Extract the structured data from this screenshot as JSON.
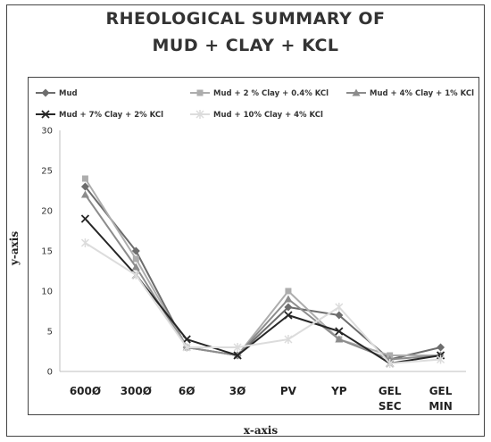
{
  "chart_data": {
    "type": "line",
    "title_line1": "RHEOLOGICAL SUMMARY OF",
    "title_line2": "MUD + CLAY + KCL",
    "xlabel": "x-axis",
    "ylabel": "y-axis",
    "ylim": [
      0,
      30
    ],
    "yticks": [
      0,
      5,
      10,
      15,
      20,
      25,
      30
    ],
    "grid": false,
    "legend_position": "top",
    "categories": [
      [
        "600Ø"
      ],
      [
        "300Ø"
      ],
      [
        "6Ø"
      ],
      [
        "3Ø"
      ],
      [
        "PV"
      ],
      [
        "YP"
      ],
      [
        "GEL",
        "SEC"
      ],
      [
        "GEL",
        "MIN"
      ]
    ],
    "series": [
      {
        "name": "Mud",
        "color": "#6d6d6d",
        "marker": "diamond",
        "values": [
          23,
          15,
          3,
          2,
          8,
          7,
          1.5,
          3
        ]
      },
      {
        "name": "Mud + 2 % Clay + 0.4% KCl",
        "color": "#adadad",
        "marker": "square",
        "values": [
          24,
          14,
          3,
          2,
          10,
          4,
          2,
          2
        ]
      },
      {
        "name": "Mud + 4% Clay + 1% KCl",
        "color": "#8c8c8c",
        "marker": "triangle",
        "values": [
          22,
          13,
          3,
          2,
          9,
          4,
          1.5,
          2
        ]
      },
      {
        "name": "Mud + 7% Clay + 2% KCl",
        "color": "#262626",
        "marker": "x",
        "values": [
          19,
          12,
          4,
          2,
          7,
          5,
          1,
          2
        ]
      },
      {
        "name": "Mud + 10% Clay + 4% KCl",
        "color": "#dcdcdc",
        "marker": "star",
        "values": [
          16,
          12,
          3,
          3,
          4,
          8,
          1,
          1.5
        ]
      }
    ]
  }
}
